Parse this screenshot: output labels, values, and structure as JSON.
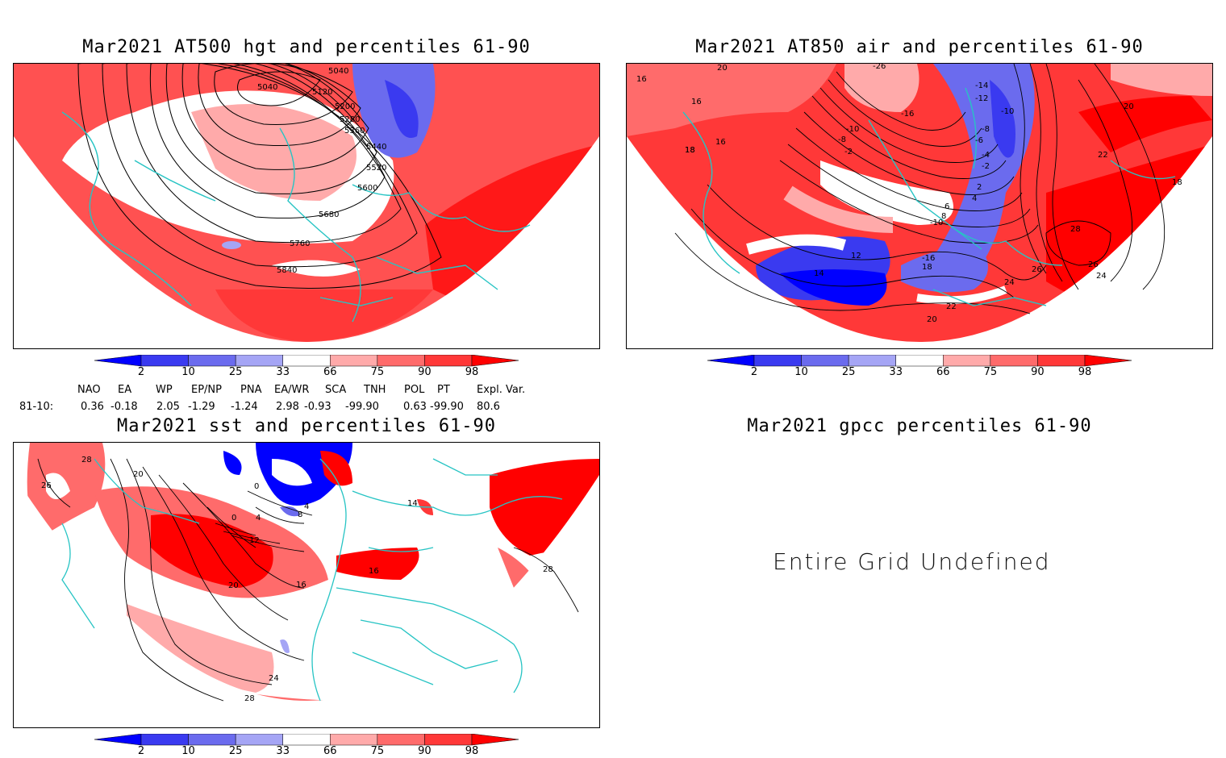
{
  "panels": {
    "hgt": {
      "title": "Mar2021 AT500 hgt and percentiles 61-90",
      "contour_labels": [
        "5040",
        "5040",
        "5120",
        "5200",
        "5280",
        "5360",
        "5440",
        "5520",
        "5600",
        "5680",
        "5760",
        "5840"
      ]
    },
    "air": {
      "title": "Mar2021 AT850 air and percentiles 61-90",
      "contour_labels": [
        "-26",
        "-16",
        "-14",
        "-12",
        "-10",
        "-10",
        "-8",
        "-8",
        "-6",
        "-4",
        "-2",
        "2",
        "4",
        "6",
        "8",
        "-10",
        "-16",
        "12",
        "14",
        "16",
        "16",
        "16",
        "18",
        "18",
        "18",
        "20",
        "20",
        "20",
        "22",
        "22",
        "24",
        "24",
        "26",
        "26",
        "28",
        "18",
        "-2"
      ]
    },
    "sst": {
      "title": "Mar2021 sst and percentiles 61-90",
      "contour_labels": [
        "28",
        "26",
        "20",
        "0",
        "4",
        "8",
        "0",
        "4",
        "12",
        "16",
        "20",
        "24",
        "28",
        "28",
        "16",
        "14"
      ]
    },
    "gpcc": {
      "title": "Mar2021 gpcc percentiles 61-90",
      "message": "Entire Grid Undefined"
    }
  },
  "colorbar": {
    "labels": [
      "2",
      "10",
      "25",
      "33",
      "66",
      "75",
      "90",
      "98"
    ],
    "colors": [
      "#0000ff",
      "#3a3af0",
      "#6b6bee",
      "#a5a5f5",
      "#ffffff",
      "#ffaaaa",
      "#ff6b6b",
      "#ff3838",
      "#ff0000"
    ]
  },
  "indices": {
    "headers": [
      "NAO",
      "EA",
      "WP",
      "EP/NP",
      "PNA",
      "EA/WR",
      "SCA",
      "TNH",
      "POL",
      "PT",
      "Expl. Var."
    ],
    "row_label": "81-10:",
    "values": [
      "0.36",
      "-0.18",
      "2.05",
      "-1.29",
      "-1.24",
      "2.98",
      "-0.93",
      "-99.90",
      "0.63",
      "-99.90",
      "80.6"
    ]
  }
}
